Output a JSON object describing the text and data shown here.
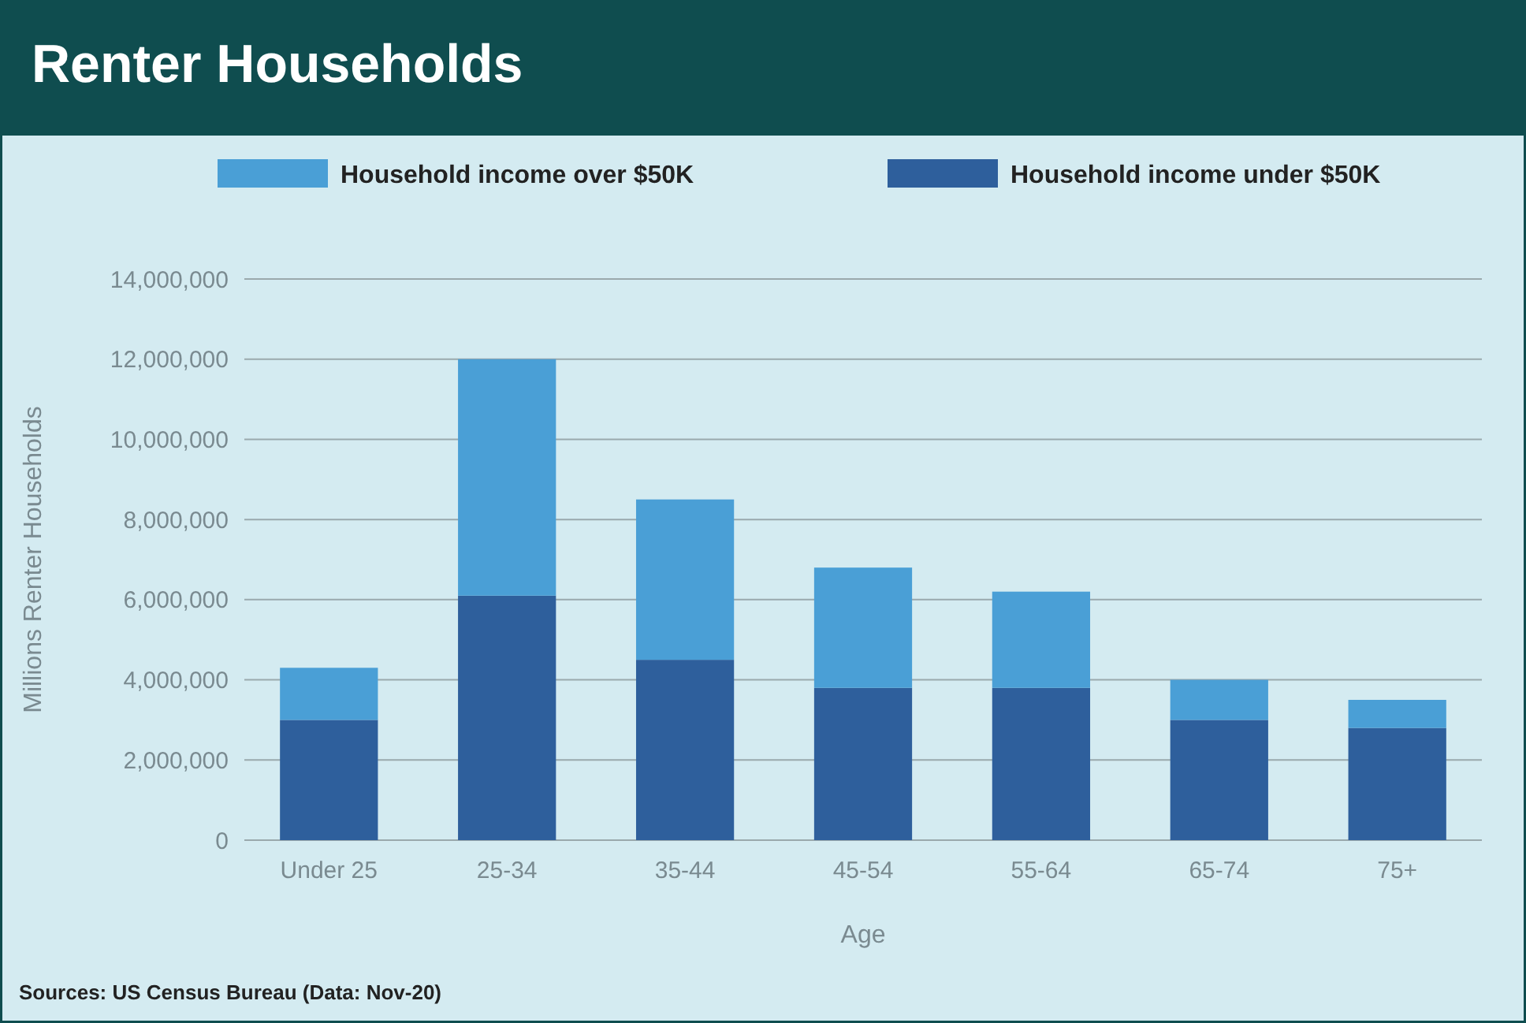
{
  "chart_data": {
    "type": "bar",
    "title": "Renter Households",
    "xlabel": "Age",
    "ylabel": "Millions Renter Households",
    "categories": [
      "Under 25",
      "25-34",
      "35-44",
      "45-54",
      "55-64",
      "65-74",
      "75+"
    ],
    "stacked": true,
    "legend": "top",
    "grid": "y",
    "ylim": [
      0,
      14000000
    ],
    "yticks": [
      {
        "value": 0,
        "label": "0"
      },
      {
        "value": 2000000,
        "label": "2,000,000"
      },
      {
        "value": 4000000,
        "label": "4,000,000"
      },
      {
        "value": 6000000,
        "label": "6,000,000"
      },
      {
        "value": 8000000,
        "label": "8,000,000"
      },
      {
        "value": 10000000,
        "label": "10,000,000"
      },
      {
        "value": 12000000,
        "label": "12,000,000"
      },
      {
        "value": 14000000,
        "label": "14,000,000"
      }
    ],
    "series": [
      {
        "name": "Household income under $50K",
        "color": "#2e5f9c",
        "values": [
          3000000,
          6100000,
          4500000,
          3800000,
          3800000,
          3000000,
          2800000
        ]
      },
      {
        "name": "Household income over $50K",
        "color": "#4a9fd6",
        "values": [
          1300000,
          5900000,
          4000000,
          3000000,
          2400000,
          1000000,
          700000
        ]
      }
    ],
    "annotations": [
      "Sources: US Census Bureau (Data: Nov-20)"
    ]
  }
}
